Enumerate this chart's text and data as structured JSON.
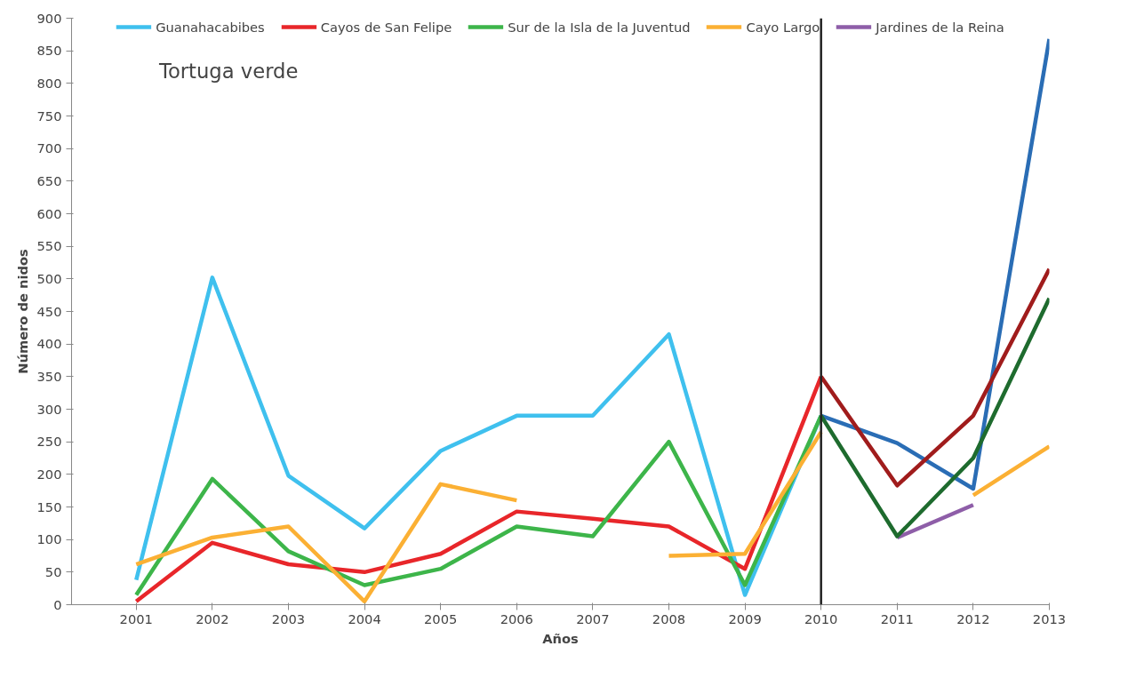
{
  "chart_data": {
    "type": "line",
    "title": "Tortuga verde",
    "xlabel": "Años",
    "ylabel": "Número de nidos",
    "x": [
      2001,
      2002,
      2003,
      2004,
      2005,
      2006,
      2007,
      2008,
      2009,
      2010
    ],
    "series": [
      {
        "name": "Guanahacabibes",
        "color": "#3fc0ee",
        "values": [
          38,
          502,
          198,
          117,
          236,
          290,
          290,
          415,
          15,
          290
        ]
      },
      {
        "name": "Cayos de San Felipe",
        "color": "#e8262a",
        "values": [
          5,
          95,
          62,
          50,
          78,
          143,
          132,
          120,
          55,
          350
        ]
      },
      {
        "name": "Sur de la Isla de la Juventud",
        "color": "#3db54a",
        "values": [
          15,
          193,
          82,
          30,
          55,
          120,
          105,
          250,
          30,
          290
        ]
      },
      {
        "name": "Cayo Largo",
        "color": "#fbb034",
        "x": [
          2001,
          2002,
          2003,
          2004,
          2005,
          2006,
          2007,
          2008,
          2009,
          2010,
          2011,
          2012,
          2013
        ],
        "values": [
          62,
          103,
          120,
          5,
          185,
          160,
          null,
          75,
          78,
          265,
          null,
          168,
          243
        ]
      },
      {
        "name": "Jardines de la Reina",
        "color": "#8e5ea8",
        "x": [
          2011,
          2012
        ],
        "values": [
          103,
          153
        ]
      },
      {
        "color": "#2a6db5",
        "x": [
          2010,
          2011,
          2012,
          2013
        ],
        "values": [
          290,
          248,
          178,
          868
        ]
      },
      {
        "color": "#a01c1c",
        "x": [
          2010,
          2011,
          2012,
          2013
        ],
        "values": [
          350,
          183,
          290,
          515
        ]
      },
      {
        "color": "#1e6b2e",
        "x": [
          2010,
          2011,
          2012,
          2013
        ],
        "values": [
          290,
          105,
          225,
          470
        ]
      }
    ],
    "xlim": [
      2000.15,
      2013
    ],
    "xticks": [
      2001,
      2002,
      2003,
      2004,
      2005,
      2006,
      2007,
      2008,
      2009,
      2010,
      2011,
      2012,
      2013
    ],
    "ylim": [
      0,
      900
    ],
    "yticks": [
      0,
      50,
      100,
      150,
      200,
      250,
      300,
      350,
      400,
      450,
      500,
      550,
      600,
      650,
      700,
      750,
      800,
      850,
      900
    ],
    "ref_lines": [
      {
        "axis": "x",
        "value": 2010,
        "color": "#222222"
      }
    ],
    "grid": false,
    "legend": "top",
    "line_style": "solid",
    "marker": "none"
  }
}
